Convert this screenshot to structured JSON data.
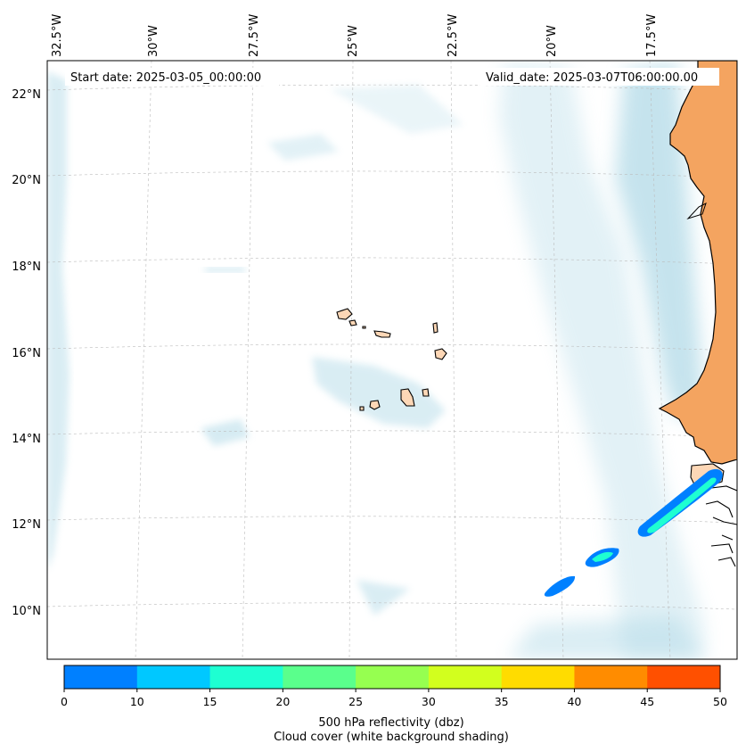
{
  "chart_data": {
    "type": "map",
    "projection_region": "Eastern tropical Atlantic / West Africa coast",
    "start_date_label": "Start date: 2025-03-05_00:00:00",
    "valid_date_label": "Valid_date: 2025-03-07T06:00:00.00",
    "longitude_ticks": [
      "32.5°W",
      "30°W",
      "27.5°W",
      "25°W",
      "22.5°W",
      "20°W",
      "17.5°W"
    ],
    "latitude_ticks": [
      "22°N",
      "20°N",
      "18°N",
      "16°N",
      "14°N",
      "12°N",
      "10°N"
    ],
    "colorbar": {
      "levels": [
        "0",
        "10",
        "15",
        "20",
        "25",
        "30",
        "35",
        "40",
        "45",
        "50"
      ],
      "colors": [
        "#0080ff",
        "#00c8ff",
        "#1effd2",
        "#5aff8c",
        "#96ff50",
        "#d2ff1e",
        "#ffdc00",
        "#ff8c00",
        "#ff5000"
      ],
      "title_line1": "500 hPa reflectivity (dbz)",
      "title_line2": "Cloud cover (white background shading)"
    },
    "colors": {
      "land": "#f4a460",
      "island": "#fdd7b6",
      "cloud": "#add8e6",
      "reflectivity_low": "#0080ff",
      "reflectivity_mid": "#1effd2"
    }
  }
}
